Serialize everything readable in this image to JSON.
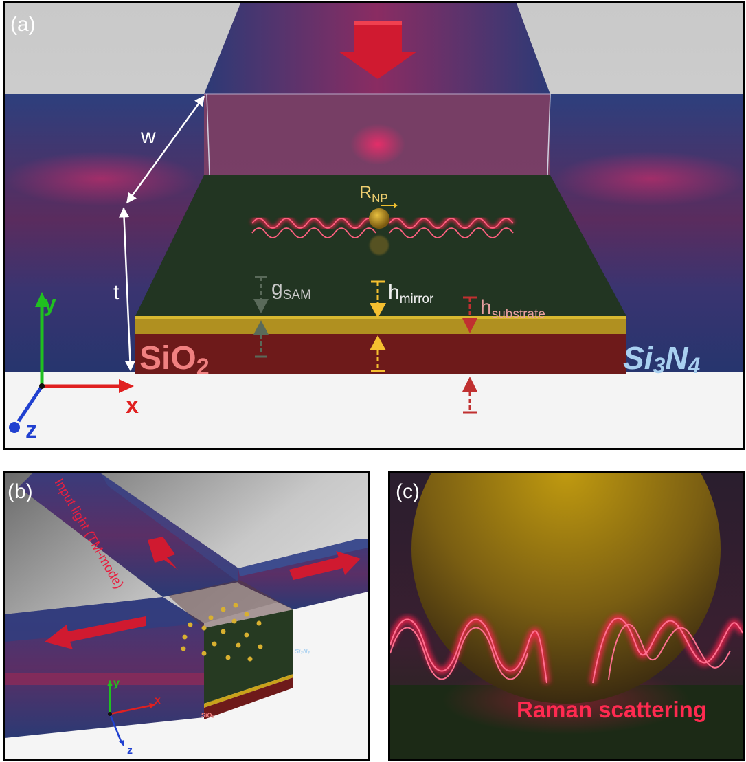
{
  "panel_a": {
    "label": "(a)",
    "w_label": "w",
    "t_label": "t",
    "r_np": {
      "main": "R",
      "sub": "NP"
    },
    "g_sam": {
      "main": "g",
      "sub": "SAM"
    },
    "h_mirror": {
      "main": "h",
      "sub": "mirror"
    },
    "h_substrate": {
      "main": "h",
      "sub": "substrate"
    },
    "sio2": {
      "main": "SiO",
      "sub": "2"
    },
    "si3n4": {
      "a": "Si",
      "b": "3",
      "c": "N",
      "d": "4"
    },
    "axis_x": "x",
    "axis_y": "y",
    "axis_z": "z"
  },
  "panel_b": {
    "label": "(b)",
    "input_light": "Input light (TM-mode)",
    "sio2": "SiO₂",
    "si3n4": "Si₃N₄",
    "axis_x": "x",
    "axis_y": "y",
    "axis_z": "z"
  },
  "panel_c": {
    "label": "(c)",
    "raman": "Raman scattering"
  },
  "colors": {
    "waveguide": "#2a3a78",
    "sio2": "#7a1c1c",
    "gold": "#c9a21a",
    "glow": "#ff2050",
    "w_t_annotation": "#ffffff",
    "g_sam": "#5a6a5a",
    "h_mirror": "#f5c030",
    "h_substrate": "#c03030",
    "sio2_text": "#f08080",
    "si3n4_text": "#a8d0f0"
  }
}
